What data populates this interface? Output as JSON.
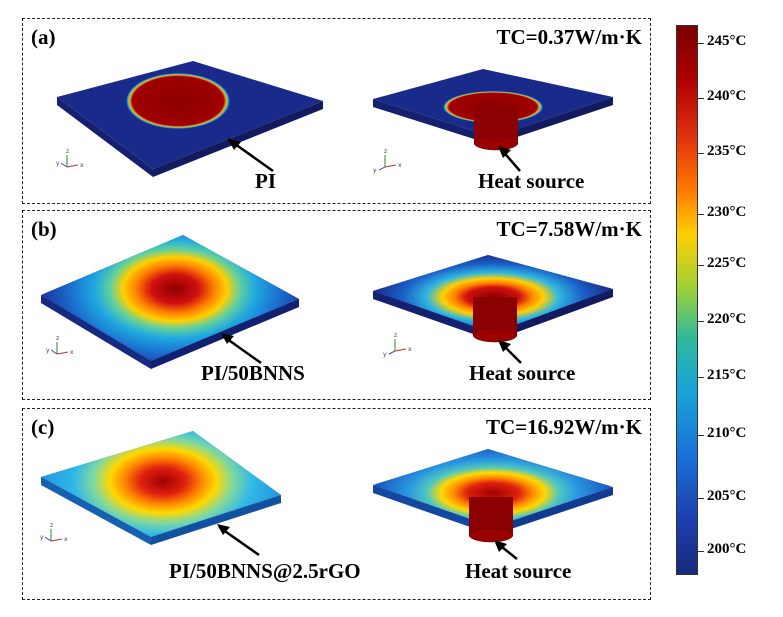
{
  "panels": [
    {
      "label": "(a)",
      "tc": "TC=0.37W/m·K",
      "material": "PI",
      "heat_source": "Heat source"
    },
    {
      "label": "(b)",
      "tc": "TC=7.58W/m·K",
      "material": "PI/50BNNS",
      "heat_source": "Heat source"
    },
    {
      "label": "(c)",
      "tc": "TC=16.92W/m·K",
      "material": "PI/50BNNS@2.5rGO",
      "heat_source": "Heat source"
    }
  ],
  "axes": {
    "x": "x",
    "y": "y",
    "z": "z"
  },
  "colorbar": {
    "ticks": [
      "245°C",
      "240°C",
      "235°C",
      "230°C",
      "225°C",
      "220°C",
      "215°C",
      "210°C",
      "205°C",
      "200°C"
    ]
  },
  "colors": {
    "hot": "#8b0000",
    "cold": "#1a237e",
    "border": "#222222"
  }
}
